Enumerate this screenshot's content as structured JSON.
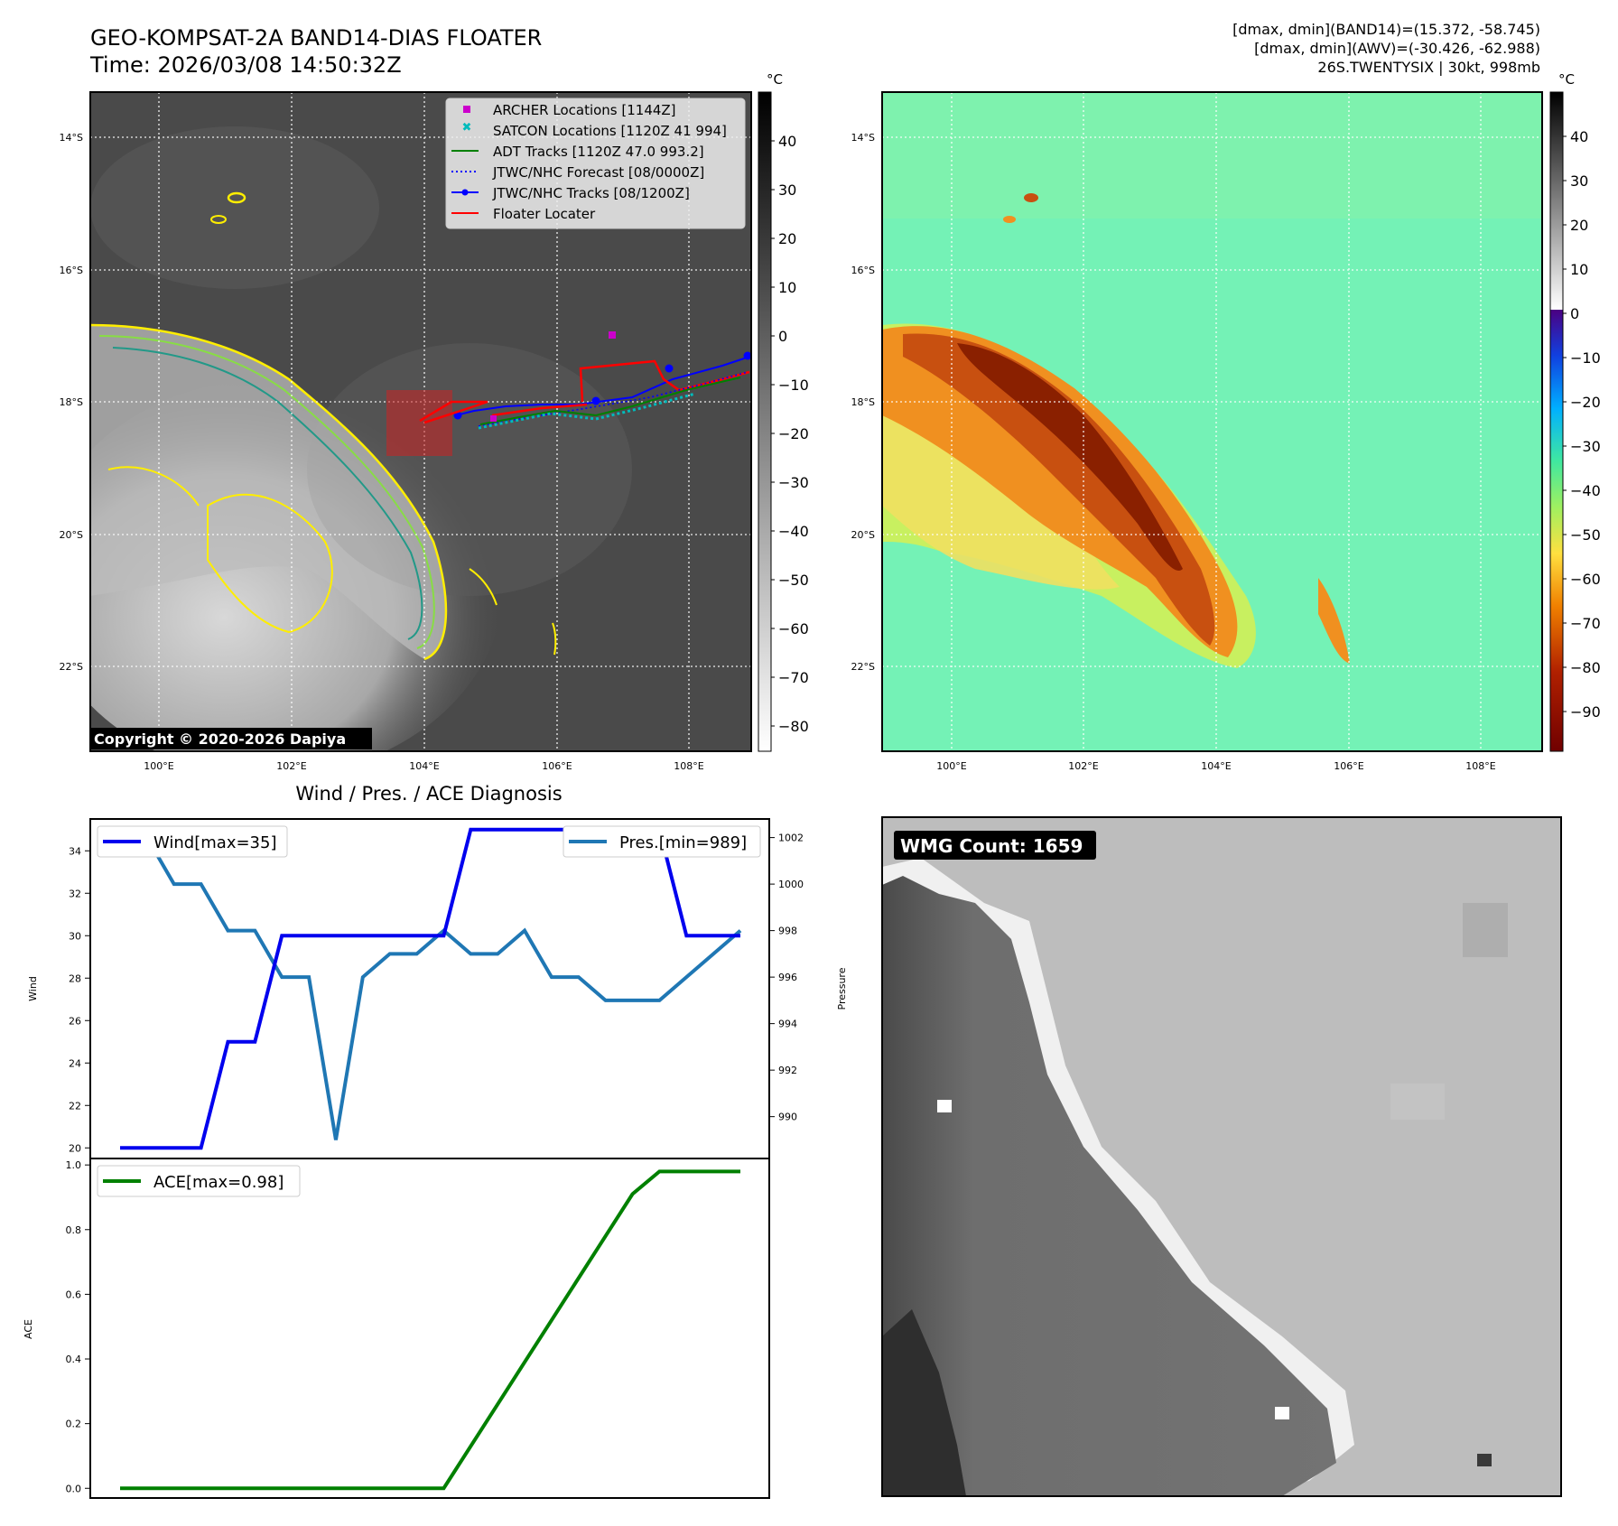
{
  "header": {
    "title_line1": "GEO-KOMPSAT-2A BAND14-DIAS FLOATER",
    "title_line2": "Time: 2026/03/08 14:50:32Z",
    "info_line1": "[dmax, dmin](BAND14)=(15.372, -58.745)",
    "info_line2": "[dmax, dmin](AWV)=(-30.426, -62.988)",
    "info_line3": "26S.TWENTYSIX | 30kt, 998mb"
  },
  "colors": {
    "wind": "#0000ee",
    "pressure": "#1f77b4",
    "ace": "#008000",
    "archer": "#cc00cc",
    "satcon": "#00bbbb",
    "adt": "#008000",
    "jtwc": "#0000ff",
    "floater": "#ff0000"
  },
  "map_left": {
    "colorbar_unit": "°C",
    "colorbar_ticks": [
      "40",
      "30",
      "20",
      "10",
      "0",
      "−10",
      "−20",
      "−30",
      "−40",
      "−50",
      "−60",
      "−70",
      "−80"
    ],
    "lat_labels": [
      "14°S",
      "16°S",
      "18°S",
      "20°S",
      "22°S"
    ],
    "lon_labels": [
      "100°E",
      "102°E",
      "104°E",
      "106°E",
      "108°E"
    ],
    "copyright": "Copyright © 2020-2026 Dapiya",
    "legend": [
      {
        "label": "ARCHER Locations [1144Z]",
        "icon": "square-marker"
      },
      {
        "label": "SATCON Locations [1120Z 41 994]",
        "icon": "x-marker"
      },
      {
        "label": "ADT Tracks [1120Z 47.0 993.2]",
        "icon": "solid-line"
      },
      {
        "label": "JTWC/NHC Forecast [08/0000Z]",
        "icon": "dotted-line"
      },
      {
        "label": "JTWC/NHC Tracks [08/1200Z]",
        "icon": "line-dot"
      },
      {
        "label": "Floater Locater",
        "icon": "solid-line"
      }
    ]
  },
  "map_right": {
    "colorbar_unit": "°C",
    "colorbar_ticks": [
      "40",
      "30",
      "20",
      "10",
      "0",
      "−10",
      "−20",
      "−30",
      "−40",
      "−50",
      "−60",
      "−70",
      "−80",
      "−90"
    ],
    "lat_labels": [
      "14°S",
      "16°S",
      "18°S",
      "20°S",
      "22°S"
    ],
    "lon_labels": [
      "100°E",
      "102°E",
      "104°E",
      "106°E",
      "108°E"
    ]
  },
  "wmg_panel": {
    "badge": "WMG Count: 1659"
  },
  "chart_data": [
    {
      "type": "line",
      "title": "Wind / Pres. / ACE Diagnosis",
      "ylabel": "Wind",
      "ylabel_right": "Pressure",
      "ylim": [
        19.5,
        35.5
      ],
      "ylim_right": [
        988.2,
        1002.8
      ],
      "yticks": [
        "20",
        "22",
        "24",
        "26",
        "28",
        "30",
        "32",
        "34"
      ],
      "yticks_right": [
        "990",
        "992",
        "994",
        "996",
        "998",
        "1000",
        "1002"
      ],
      "series": [
        {
          "name": "Wind[max=35]",
          "axis": "left",
          "values": [
            20,
            20,
            20,
            20,
            25,
            25,
            30,
            30,
            30,
            30,
            30,
            30,
            30,
            35,
            35,
            35,
            35,
            35,
            35,
            35,
            35,
            30,
            30,
            30
          ]
        },
        {
          "name": "Pres.[min=989]",
          "axis": "right",
          "values": [
            1002,
            1002,
            1000,
            1000,
            998,
            998,
            996,
            996,
            989,
            996,
            997,
            997,
            998,
            997,
            997,
            998,
            996,
            996,
            995,
            995,
            995,
            996,
            997,
            998
          ]
        }
      ]
    },
    {
      "type": "line",
      "ylabel": "ACE",
      "ylim": [
        -0.03,
        1.02
      ],
      "yticks": [
        "0.0",
        "0.2",
        "0.4",
        "0.6",
        "0.8",
        "1.0"
      ],
      "series": [
        {
          "name": "ACE[max=0.98]",
          "values": [
            0,
            0,
            0,
            0,
            0,
            0,
            0,
            0,
            0,
            0,
            0,
            0,
            0,
            0.13,
            0.26,
            0.39,
            0.52,
            0.65,
            0.78,
            0.91,
            0.98,
            0.98,
            0.98,
            0.98
          ]
        }
      ]
    }
  ]
}
